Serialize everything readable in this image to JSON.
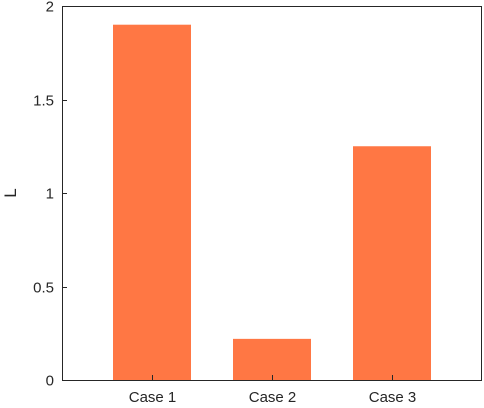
{
  "chart_data": {
    "type": "bar",
    "categories": [
      "Case 1",
      "Case 2",
      "Case 3"
    ],
    "values": [
      1.9,
      0.22,
      1.25
    ],
    "title": "",
    "xlabel": "",
    "ylabel": "L",
    "ylim": [
      0,
      2
    ],
    "yticks": [
      "0",
      "0.5",
      "1",
      "1.5",
      "2"
    ],
    "yticks_values": [
      0,
      0.5,
      1,
      1.5,
      2
    ],
    "bar_color": "#FF7744",
    "axis_color": "#262626",
    "grid": false,
    "legend": "none"
  }
}
